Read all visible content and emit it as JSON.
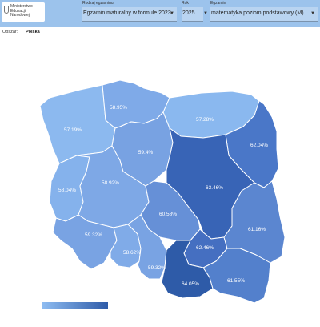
{
  "header": {
    "logo_text": "Ministerstwo Edukacji Narodowej",
    "fields": [
      {
        "label": "Rodzaj egzaminu",
        "value": "Egzamin maturalny w formule 2023"
      },
      {
        "label": "Rok",
        "value": "2025"
      },
      {
        "label": "Egzamin",
        "value": "matematyka poziom podstawowy (M)"
      }
    ]
  },
  "area": {
    "label": "Obszar:",
    "value": "Polska"
  },
  "colors": {
    "topbar": "#9cc3ec",
    "low": "#8fbdf2",
    "high": "#2e5ba8",
    "accent": "#d9263a"
  },
  "regions": [
    {
      "name": "zachodniopomorskie",
      "label": "57.19%",
      "color": "#8cb9ef"
    },
    {
      "name": "pomorskie",
      "label": "58.95%",
      "color": "#7faae8"
    },
    {
      "name": "warminsko-mazurskie",
      "label": "57.28%",
      "color": "#8ab8ef"
    },
    {
      "name": "podlaskie",
      "label": "62.04%",
      "color": "#4a77c8"
    },
    {
      "name": "lubuskie",
      "label": "58.04%",
      "color": "#85b2ec"
    },
    {
      "name": "wielkopolskie",
      "label": "58.92%",
      "color": "#7ea8e6"
    },
    {
      "name": "kujawsko-pomorskie",
      "label": "59.4%",
      "color": "#78a2e2"
    },
    {
      "name": "mazowieckie",
      "label": "63.46%",
      "color": "#3864b6"
    },
    {
      "name": "lodzkie",
      "label": "60.58%",
      "color": "#6690d7"
    },
    {
      "name": "dolnoslaskie",
      "label": "59.32%",
      "color": "#79a3e3"
    },
    {
      "name": "opolskie",
      "label": "58.62%",
      "color": "#80abe8"
    },
    {
      "name": "slaskie",
      "label": "59.32%",
      "color": "#79a3e3"
    },
    {
      "name": "swietokrzyskie",
      "label": "62.46%",
      "color": "#456fc1"
    },
    {
      "name": "lubelskie",
      "label": "61.16%",
      "color": "#5b86d0"
    },
    {
      "name": "malopolskie",
      "label": "64.05%",
      "color": "#2e5ba8"
    },
    {
      "name": "podkarpackie",
      "label": "61.55%",
      "color": "#5380cc"
    }
  ],
  "legend": {
    "min_color": "#8fbdf2",
    "max_color": "#2e5ba8"
  }
}
